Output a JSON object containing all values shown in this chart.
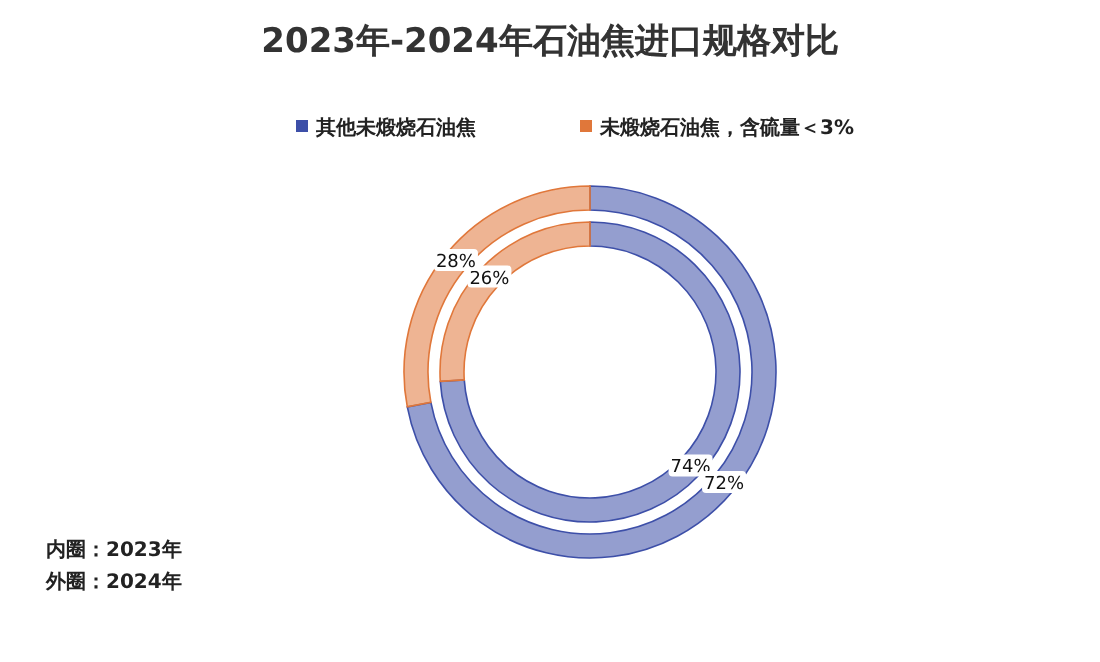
{
  "chart_data": {
    "type": "donut",
    "title": "2023年-2024年石油焦进口规格对比",
    "categories": [
      "其他未煅烧石油焦",
      "未煅烧石油焦，含硫量＜3%"
    ],
    "series": [
      {
        "values": [
          74,
          26
        ],
        "colors": [
          "#3d4fa8",
          "#e0773a"
        ],
        "value_labels": [
          "74%",
          "26%"
        ]
      },
      {
        "values": [
          72,
          28
        ],
        "colors": [
          "#3d4fa8",
          "#e0773a"
        ],
        "value_labels": [
          "72%",
          "28%"
        ]
      }
    ],
    "legend": "top",
    "data_labels": true,
    "annotations": [
      "内圈：2023年",
      "外圈：2024年"
    ]
  }
}
